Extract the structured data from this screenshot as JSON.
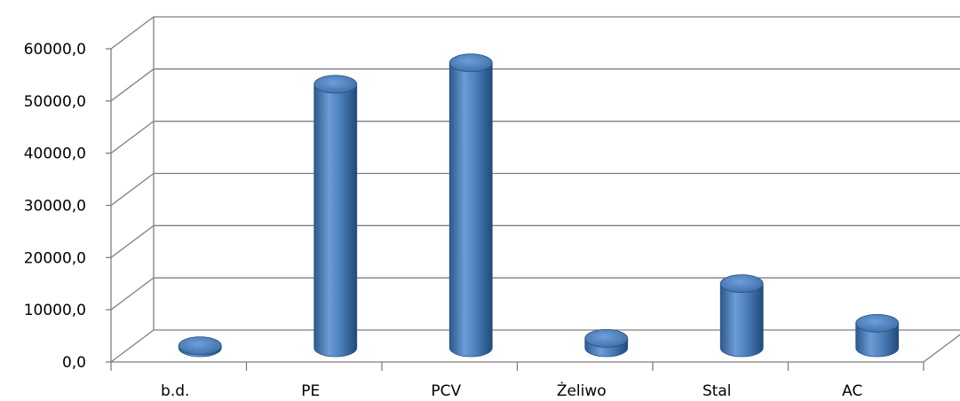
{
  "chart_data": {
    "type": "bar",
    "variant": "3d-cylinder",
    "categories": [
      "b.d.",
      "PE",
      "PCV",
      "Żeliwo",
      "Stal",
      "AC"
    ],
    "values": [
      400,
      50500,
      54600,
      1800,
      12300,
      4700
    ],
    "y_ticks": [
      "0,0",
      "10000,0",
      "20000,0",
      "30000,0",
      "40000,0",
      "50000,0",
      "60000,0"
    ],
    "ylim": [
      0,
      60000
    ],
    "title": "",
    "xlabel": "",
    "ylabel": "",
    "grid": true,
    "legend": "none",
    "colors": {
      "bar": "#4f81bd",
      "bar_dark": "#2c5a8c",
      "bar_light": "#8fb3e0",
      "grid": "#7f7f7f"
    }
  }
}
